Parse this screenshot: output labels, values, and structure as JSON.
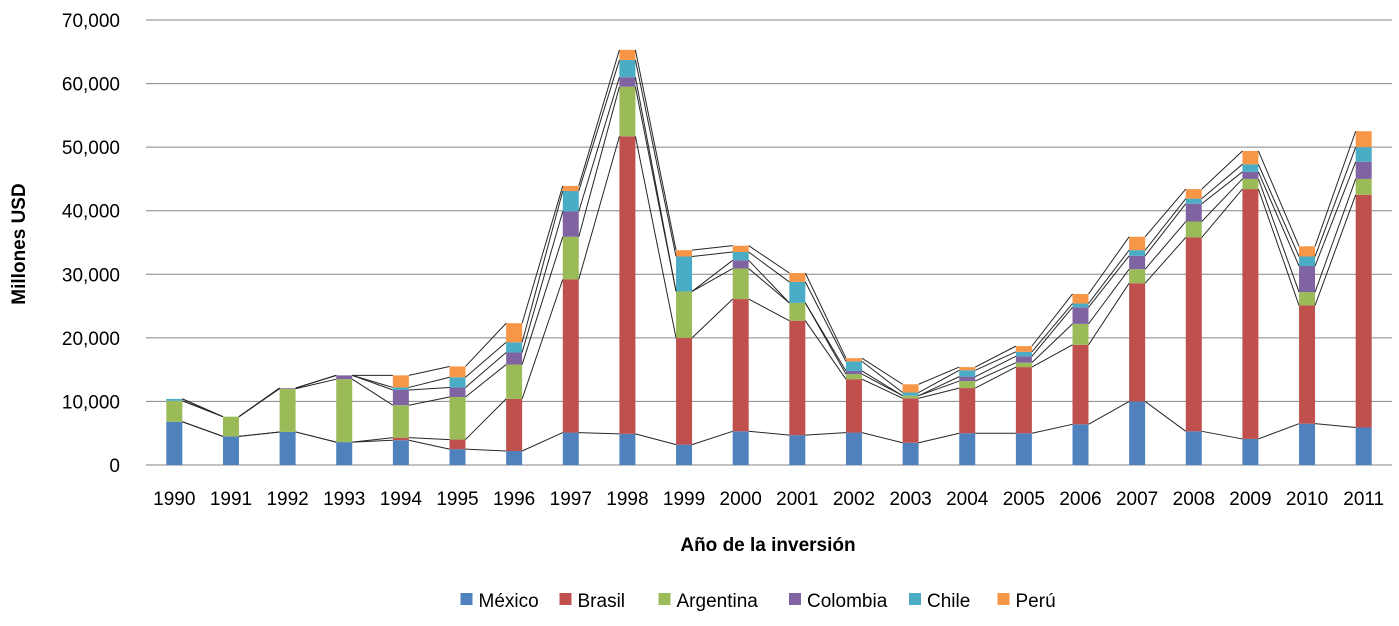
{
  "chart_data": {
    "type": "bar",
    "stacked": true,
    "series_lines": true,
    "categories": [
      "1990",
      "1991",
      "1992",
      "1993",
      "1994",
      "1995",
      "1996",
      "1997",
      "1998",
      "1999",
      "2000",
      "2001",
      "2002",
      "2003",
      "2004",
      "2005",
      "2006",
      "2007",
      "2008",
      "2009",
      "2010",
      "2011"
    ],
    "series": [
      {
        "name": "México",
        "color": "#4f81bd",
        "values": [
          6800,
          4500,
          5200,
          3600,
          3900,
          2500,
          2200,
          5100,
          4900,
          3200,
          5300,
          4700,
          5100,
          3500,
          5000,
          5000,
          6400,
          10000,
          5300,
          4100,
          6500,
          5900
        ]
      },
      {
        "name": "Brasil",
        "color": "#c0504d",
        "values": [
          0,
          0,
          0,
          0,
          400,
          1500,
          8200,
          24100,
          46800,
          16800,
          20800,
          18000,
          8400,
          7000,
          7100,
          10400,
          12500,
          18600,
          30500,
          39300,
          18600,
          36600
        ]
      },
      {
        "name": "Argentina",
        "color": "#9bbb59",
        "values": [
          3300,
          3100,
          6800,
          9900,
          5100,
          6700,
          5400,
          6700,
          7800,
          7300,
          4800,
          2800,
          800,
          400,
          1100,
          700,
          3300,
          2200,
          2500,
          1600,
          2100,
          2500
        ]
      },
      {
        "name": "Colombia",
        "color": "#8064a2",
        "values": [
          0,
          0,
          100,
          600,
          2400,
          1500,
          1900,
          4000,
          1500,
          0,
          1300,
          0,
          500,
          0,
          700,
          1000,
          2600,
          2100,
          2800,
          1100,
          4100,
          2700
        ]
      },
      {
        "name": "Chile",
        "color": "#4bacc6",
        "values": [
          300,
          0,
          0,
          0,
          400,
          1600,
          1600,
          3200,
          2700,
          5500,
          1300,
          3300,
          1500,
          500,
          1000,
          700,
          600,
          900,
          800,
          1200,
          1500,
          2300
        ]
      },
      {
        "name": "Perú",
        "color": "#f79646",
        "values": [
          0,
          0,
          0,
          0,
          1900,
          1700,
          3000,
          800,
          1600,
          1000,
          1000,
          1400,
          500,
          1300,
          500,
          900,
          1500,
          2100,
          1500,
          2100,
          1600,
          2500
        ]
      }
    ],
    "title": "",
    "xlabel": "Año de la inversión",
    "ylabel": "Millones USD",
    "ylim": [
      0,
      70000
    ],
    "yticks": [
      0,
      10000,
      20000,
      30000,
      40000,
      50000,
      60000,
      70000
    ],
    "ytick_labels": [
      "0",
      "10,000",
      "20,000",
      "30,000",
      "40,000",
      "50,000",
      "60,000",
      "70,000"
    ],
    "grid": true,
    "legend_position": "bottom"
  }
}
